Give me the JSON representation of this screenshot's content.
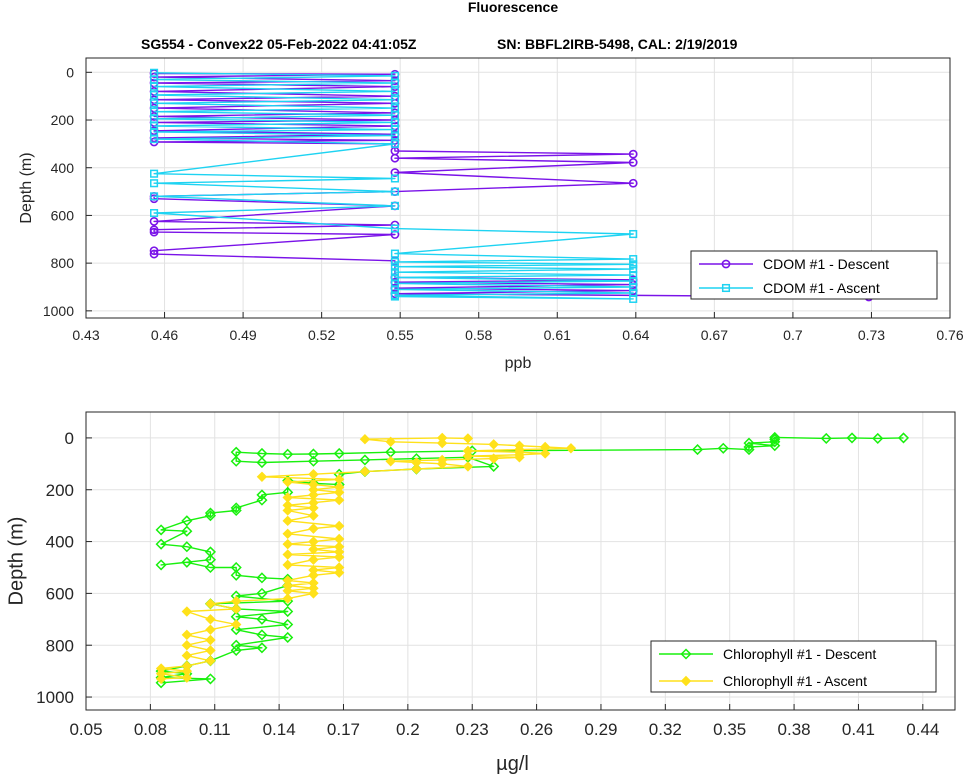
{
  "figure": {
    "title": "Fluorescence",
    "subtitle_left": "SG554 - Convex22 05-Feb-2022 04:41:05Z",
    "subtitle_right": "SN: BBFL2IRB-5498, CAL: 2/19/2019"
  },
  "chart_data": [
    {
      "type": "line",
      "xlabel": "ppb",
      "ylabel": "Depth (m)",
      "xlim": [
        0.43,
        0.76
      ],
      "ylim": [
        1030,
        -60
      ],
      "y_reversed": true,
      "grid": true,
      "legend_position": "bottom-right",
      "x_ticks": [
        "0.43",
        "0.46",
        "0.49",
        "0.52",
        "0.55",
        "0.58",
        "0.61",
        "0.64",
        "0.67",
        "0.7",
        "0.73",
        "0.76"
      ],
      "y_ticks": [
        "0",
        "200",
        "400",
        "600",
        "800",
        "1000"
      ],
      "series": [
        {
          "name": "CDOM #1 - Descent",
          "color": "#7a13e8",
          "marker": "circle",
          "points": [
            [
              0.456,
              5
            ],
            [
              0.548,
              8
            ],
            [
              0.456,
              20
            ],
            [
              0.548,
              35
            ],
            [
              0.456,
              45
            ],
            [
              0.548,
              60
            ],
            [
              0.456,
              80
            ],
            [
              0.548,
              100
            ],
            [
              0.456,
              115
            ],
            [
              0.548,
              130
            ],
            [
              0.456,
              150
            ],
            [
              0.548,
              170
            ],
            [
              0.456,
              185
            ],
            [
              0.548,
              200
            ],
            [
              0.456,
              210
            ],
            [
              0.548,
              225
            ],
            [
              0.456,
              245
            ],
            [
              0.548,
              260
            ],
            [
              0.456,
              275
            ],
            [
              0.548,
              285
            ],
            [
              0.456,
              292
            ],
            [
              0.548,
              300
            ],
            [
              0.548,
              330
            ],
            [
              0.639,
              343
            ],
            [
              0.548,
              360
            ],
            [
              0.639,
              378
            ],
            [
              0.548,
              420
            ],
            [
              0.639,
              465
            ],
            [
              0.548,
              500
            ],
            [
              0.456,
              520
            ],
            [
              0.456,
              530
            ],
            [
              0.548,
              560
            ],
            [
              0.456,
              625
            ],
            [
              0.548,
              640
            ],
            [
              0.456,
              660
            ],
            [
              0.456,
              670
            ],
            [
              0.548,
              680
            ],
            [
              0.456,
              748
            ],
            [
              0.456,
              762
            ],
            [
              0.548,
              790
            ],
            [
              0.548,
              860
            ],
            [
              0.639,
              870
            ],
            [
              0.548,
              880
            ],
            [
              0.639,
              890
            ],
            [
              0.548,
              905
            ],
            [
              0.639,
              915
            ],
            [
              0.548,
              928
            ],
            [
              0.729,
              942
            ]
          ]
        },
        {
          "name": "CDOM #1 - Ascent",
          "color": "#1ed3f2",
          "marker": "square",
          "points": [
            [
              0.548,
              940
            ],
            [
              0.639,
              950
            ],
            [
              0.548,
              935
            ],
            [
              0.639,
              925
            ],
            [
              0.548,
              910
            ],
            [
              0.639,
              900
            ],
            [
              0.548,
              885
            ],
            [
              0.639,
              875
            ],
            [
              0.548,
              860
            ],
            [
              0.639,
              850
            ],
            [
              0.548,
              838
            ],
            [
              0.639,
              825
            ],
            [
              0.548,
              815
            ],
            [
              0.639,
              805
            ],
            [
              0.548,
              795
            ],
            [
              0.639,
              783
            ],
            [
              0.548,
              760
            ],
            [
              0.639,
              678
            ],
            [
              0.548,
              655
            ],
            [
              0.456,
              590
            ],
            [
              0.548,
              560
            ],
            [
              0.456,
              520
            ],
            [
              0.548,
              500
            ],
            [
              0.456,
              465
            ],
            [
              0.548,
              445
            ],
            [
              0.456,
              425
            ],
            [
              0.548,
              300
            ],
            [
              0.456,
              280
            ],
            [
              0.548,
              265
            ],
            [
              0.456,
              250
            ],
            [
              0.548,
              240
            ],
            [
              0.456,
              225
            ],
            [
              0.548,
              210
            ],
            [
              0.456,
              195
            ],
            [
              0.548,
              180
            ],
            [
              0.456,
              165
            ],
            [
              0.548,
              150
            ],
            [
              0.456,
              130
            ],
            [
              0.548,
              115
            ],
            [
              0.456,
              95
            ],
            [
              0.548,
              80
            ],
            [
              0.456,
              60
            ],
            [
              0.548,
              45
            ],
            [
              0.456,
              30
            ],
            [
              0.548,
              15
            ],
            [
              0.456,
              2
            ]
          ]
        }
      ]
    },
    {
      "type": "line",
      "xlabel": "µg/l",
      "ylabel": "Depth (m)",
      "xlim": [
        0.05,
        0.455
      ],
      "ylim": [
        1050,
        -100
      ],
      "y_reversed": true,
      "grid": true,
      "legend_position": "bottom-right",
      "x_ticks": [
        "0.05",
        "0.08",
        "0.11",
        "0.14",
        "0.17",
        "0.2",
        "0.23",
        "0.26",
        "0.29",
        "0.32",
        "0.35",
        "0.38",
        "0.41",
        "0.44"
      ],
      "y_ticks": [
        "0",
        "200",
        "400",
        "600",
        "800",
        "1000"
      ],
      "series": [
        {
          "name": "Chlorophyll #1 - Descent",
          "color": "#19f00e",
          "marker": "diamond",
          "points": [
            [
              0.431,
              0
            ],
            [
              0.419,
              2
            ],
            [
              0.407,
              0
            ],
            [
              0.395,
              2
            ],
            [
              0.371,
              -2
            ],
            [
              0.371,
              5
            ],
            [
              0.371,
              15
            ],
            [
              0.359,
              20
            ],
            [
              0.371,
              30
            ],
            [
              0.359,
              35
            ],
            [
              0.359,
              45
            ],
            [
              0.347,
              40
            ],
            [
              0.335,
              45
            ],
            [
              0.23,
              50
            ],
            [
              0.192,
              55
            ],
            [
              0.168,
              60
            ],
            [
              0.156,
              62
            ],
            [
              0.144,
              63
            ],
            [
              0.132,
              60
            ],
            [
              0.12,
              55
            ],
            [
              0.12,
              90
            ],
            [
              0.132,
              95
            ],
            [
              0.156,
              90
            ],
            [
              0.18,
              85
            ],
            [
              0.204,
              80
            ],
            [
              0.228,
              75
            ],
            [
              0.24,
              110
            ],
            [
              0.204,
              120
            ],
            [
              0.18,
              130
            ],
            [
              0.168,
              140
            ],
            [
              0.168,
              180
            ],
            [
              0.156,
              175
            ],
            [
              0.144,
              165
            ],
            [
              0.144,
              210
            ],
            [
              0.132,
              220
            ],
            [
              0.132,
              240
            ],
            [
              0.12,
              270
            ],
            [
              0.12,
              280
            ],
            [
              0.108,
              290
            ],
            [
              0.108,
              300
            ],
            [
              0.097,
              320
            ],
            [
              0.085,
              355
            ],
            [
              0.097,
              360
            ],
            [
              0.085,
              410
            ],
            [
              0.097,
              420
            ],
            [
              0.108,
              440
            ],
            [
              0.108,
              470
            ],
            [
              0.085,
              490
            ],
            [
              0.097,
              480
            ],
            [
              0.108,
              500
            ],
            [
              0.12,
              500
            ],
            [
              0.12,
              530
            ],
            [
              0.132,
              540
            ],
            [
              0.144,
              545
            ],
            [
              0.144,
              570
            ],
            [
              0.132,
              600
            ],
            [
              0.12,
              610
            ],
            [
              0.144,
              630
            ],
            [
              0.108,
              640
            ],
            [
              0.12,
              660
            ],
            [
              0.144,
              670
            ],
            [
              0.12,
              690
            ],
            [
              0.132,
              700
            ],
            [
              0.144,
              720
            ],
            [
              0.12,
              740
            ],
            [
              0.132,
              760
            ],
            [
              0.144,
              770
            ],
            [
              0.12,
              800
            ],
            [
              0.132,
              810
            ],
            [
              0.12,
              820
            ],
            [
              0.108,
              860
            ],
            [
              0.097,
              880
            ],
            [
              0.085,
              900
            ],
            [
              0.097,
              910
            ],
            [
              0.085,
              925
            ],
            [
              0.108,
              930
            ],
            [
              0.085,
              945
            ]
          ]
        },
        {
          "name": "Chlorophyll #1 - Ascent",
          "color": "#ffe11a",
          "marker": "diamond-filled",
          "points": [
            [
              0.085,
              930
            ],
            [
              0.097,
              925
            ],
            [
              0.085,
              910
            ],
            [
              0.097,
              900
            ],
            [
              0.085,
              890
            ],
            [
              0.097,
              880
            ],
            [
              0.108,
              860
            ],
            [
              0.097,
              840
            ],
            [
              0.108,
              820
            ],
            [
              0.097,
              800
            ],
            [
              0.108,
              780
            ],
            [
              0.097,
              760
            ],
            [
              0.108,
              740
            ],
            [
              0.12,
              720
            ],
            [
              0.108,
              700
            ],
            [
              0.097,
              670
            ],
            [
              0.12,
              660
            ],
            [
              0.108,
              640
            ],
            [
              0.12,
              630
            ],
            [
              0.144,
              620
            ],
            [
              0.156,
              600
            ],
            [
              0.144,
              590
            ],
            [
              0.156,
              580
            ],
            [
              0.144,
              570
            ],
            [
              0.156,
              560
            ],
            [
              0.144,
              550
            ],
            [
              0.156,
              530
            ],
            [
              0.168,
              520
            ],
            [
              0.156,
              510
            ],
            [
              0.168,
              500
            ],
            [
              0.144,
              490
            ],
            [
              0.156,
              470
            ],
            [
              0.168,
              460
            ],
            [
              0.144,
              450
            ],
            [
              0.168,
              440
            ],
            [
              0.156,
              430
            ],
            [
              0.168,
              420
            ],
            [
              0.144,
              410
            ],
            [
              0.156,
              400
            ],
            [
              0.168,
              390
            ],
            [
              0.144,
              370
            ],
            [
              0.156,
              350
            ],
            [
              0.168,
              340
            ],
            [
              0.144,
              320
            ],
            [
              0.156,
              300
            ],
            [
              0.144,
              280
            ],
            [
              0.156,
              270
            ],
            [
              0.144,
              260
            ],
            [
              0.156,
              250
            ],
            [
              0.168,
              240
            ],
            [
              0.144,
              230
            ],
            [
              0.156,
              220
            ],
            [
              0.168,
              210
            ],
            [
              0.156,
              200
            ],
            [
              0.168,
              190
            ],
            [
              0.156,
              180
            ],
            [
              0.144,
              170
            ],
            [
              0.168,
              160
            ],
            [
              0.132,
              150
            ],
            [
              0.156,
              140
            ],
            [
              0.18,
              130
            ],
            [
              0.204,
              120
            ],
            [
              0.228,
              110
            ],
            [
              0.216,
              100
            ],
            [
              0.204,
              95
            ],
            [
              0.192,
              90
            ],
            [
              0.216,
              85
            ],
            [
              0.24,
              80
            ],
            [
              0.252,
              75
            ],
            [
              0.228,
              70
            ],
            [
              0.252,
              65
            ],
            [
              0.264,
              60
            ],
            [
              0.252,
              55
            ],
            [
              0.228,
              50
            ],
            [
              0.252,
              45
            ],
            [
              0.276,
              40
            ],
            [
              0.264,
              35
            ],
            [
              0.252,
              30
            ],
            [
              0.24,
              25
            ],
            [
              0.216,
              20
            ],
            [
              0.192,
              15
            ],
            [
              0.18,
              5
            ],
            [
              0.216,
              0
            ],
            [
              0.228,
              2
            ]
          ]
        }
      ]
    }
  ]
}
